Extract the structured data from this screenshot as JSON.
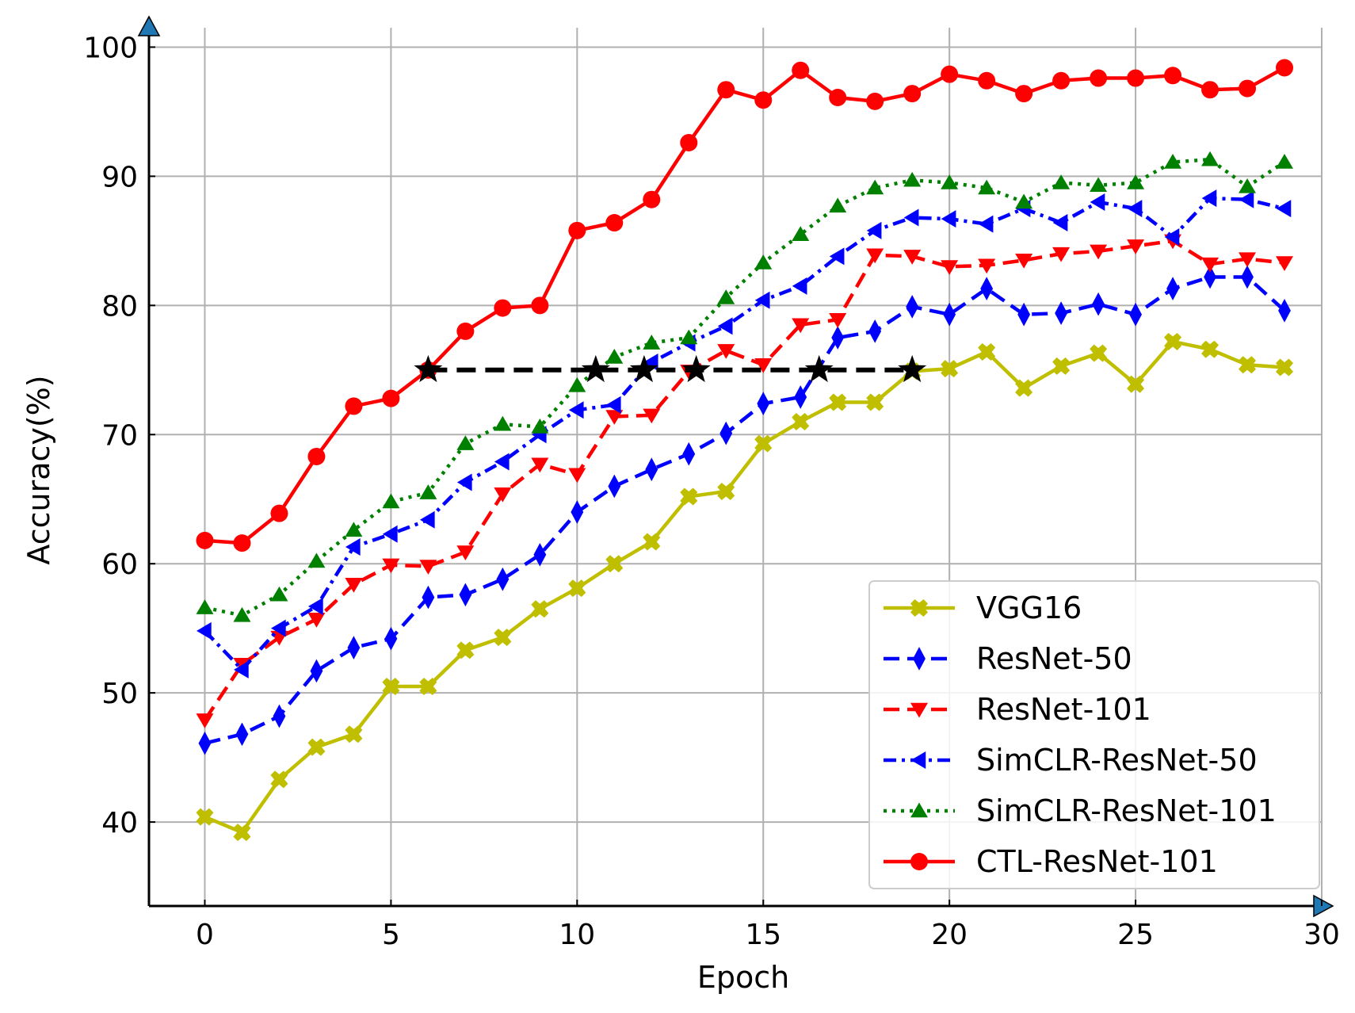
{
  "chart_data": {
    "type": "line",
    "title": "",
    "xlabel": "Epoch",
    "ylabel": "Accuracy(%)",
    "xlim": [
      -1.5,
      30
    ],
    "ylim": [
      33.5,
      101.5
    ],
    "xticks": [
      0,
      5,
      10,
      15,
      20,
      25,
      30
    ],
    "yticks": [
      40,
      50,
      60,
      70,
      80,
      90,
      100
    ],
    "grid": true,
    "legend_position": "bottom-right",
    "x": [
      0,
      1,
      2,
      3,
      4,
      5,
      6,
      7,
      8,
      9,
      10,
      11,
      12,
      13,
      14,
      15,
      16,
      17,
      18,
      19,
      20,
      21,
      22,
      23,
      24,
      25,
      26,
      27,
      28,
      29
    ],
    "series": [
      {
        "name": "VGG16",
        "color": "#bfbf00",
        "line_style": "solid",
        "marker": "x-filled",
        "values": [
          40.4,
          39.2,
          43.3,
          45.8,
          46.8,
          50.5,
          50.5,
          53.3,
          54.3,
          56.5,
          58.1,
          60.0,
          61.7,
          65.2,
          65.6,
          69.3,
          71.0,
          72.5,
          72.5,
          74.9,
          75.1,
          76.4,
          73.6,
          75.3,
          76.3,
          73.9,
          77.2,
          76.6,
          75.4,
          75.2
        ]
      },
      {
        "name": "ResNet-50",
        "color": "#0000ff",
        "line_style": "dashed",
        "marker": "diamond",
        "values": [
          46.1,
          46.8,
          48.2,
          51.7,
          53.5,
          54.2,
          57.4,
          57.6,
          58.8,
          60.7,
          64.0,
          66.0,
          67.3,
          68.5,
          70.1,
          72.4,
          72.9,
          77.5,
          78.0,
          79.9,
          79.3,
          81.3,
          79.3,
          79.4,
          80.1,
          79.3,
          81.3,
          82.2,
          82.2,
          79.6
        ]
      },
      {
        "name": "ResNet-101",
        "color": "#ff0000",
        "line_style": "dashed",
        "marker": "triangle-down",
        "values": [
          47.9,
          52.2,
          54.3,
          55.7,
          58.4,
          59.9,
          59.8,
          60.9,
          65.4,
          67.7,
          66.9,
          71.4,
          71.5,
          74.9,
          76.5,
          75.4,
          78.5,
          78.9,
          83.9,
          83.8,
          83.0,
          83.1,
          83.5,
          84.0,
          84.2,
          84.6,
          85.0,
          83.2,
          83.6,
          83.3
        ]
      },
      {
        "name": "SimCLR-ResNet-50",
        "color": "#0000ff",
        "line_style": "dashdot",
        "marker": "triangle-left",
        "values": [
          54.8,
          51.8,
          55.0,
          56.7,
          61.3,
          62.3,
          63.4,
          66.3,
          67.9,
          70.0,
          71.9,
          72.3,
          75.6,
          77.1,
          78.4,
          80.4,
          81.5,
          83.8,
          85.8,
          86.8,
          86.7,
          86.3,
          87.5,
          86.4,
          88.0,
          87.5,
          85.3,
          88.3,
          88.2,
          87.5
        ]
      },
      {
        "name": "SimCLR-ResNet-101",
        "color": "#008000",
        "line_style": "dotted",
        "marker": "triangle-up",
        "values": [
          56.6,
          56.0,
          57.6,
          60.2,
          62.6,
          64.8,
          65.5,
          69.3,
          70.8,
          70.6,
          73.8,
          76.0,
          77.1,
          77.5,
          80.6,
          83.3,
          85.5,
          87.7,
          89.1,
          89.7,
          89.5,
          89.1,
          88.0,
          89.5,
          89.3,
          89.5,
          91.1,
          91.3,
          89.2,
          91.1
        ]
      },
      {
        "name": "CTL-ResNet-101",
        "color": "#ff0000",
        "line_style": "solid",
        "marker": "circle",
        "values": [
          61.8,
          61.6,
          63.9,
          68.3,
          72.2,
          72.8,
          75.0,
          78.0,
          79.8,
          80.0,
          85.8,
          86.4,
          88.2,
          92.6,
          96.7,
          95.9,
          98.2,
          96.1,
          95.8,
          96.4,
          97.9,
          97.4,
          96.4,
          97.4,
          97.6,
          97.6,
          97.8,
          96.7,
          96.8,
          98.4
        ]
      }
    ],
    "reference_line": {
      "color": "#000000",
      "line_style": "dashed",
      "marker": "star",
      "y": 75,
      "x_points": [
        6,
        10.5,
        11.8,
        13.2,
        16.5,
        19
      ]
    }
  }
}
